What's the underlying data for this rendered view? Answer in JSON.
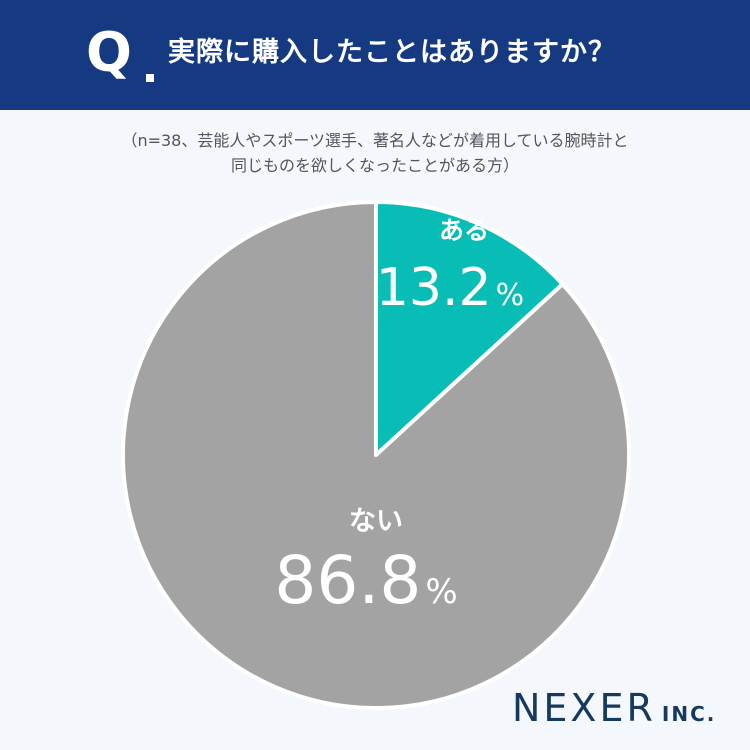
{
  "header": {
    "q_mark": "Q",
    "question": "実際に購入したことはありますか？"
  },
  "note": {
    "line1": "（n=38、芸能人やスポーツ選手、著名人などが着用している腕時計と",
    "line2": "同じものを欲しくなったことがある方）"
  },
  "colors": {
    "header_bg": "#163a82",
    "yes": "#08bdb5",
    "no": "#a3a3a3",
    "background": "#f4f7fc"
  },
  "chart_data": {
    "type": "pie",
    "slices": [
      {
        "label": "ある",
        "value": 13.2,
        "display": "13.2",
        "unit": "%"
      },
      {
        "label": "ない",
        "value": 86.8,
        "display": "86.8",
        "unit": "%"
      }
    ]
  },
  "logo": {
    "main": "NEXER",
    "sub": "INC."
  }
}
